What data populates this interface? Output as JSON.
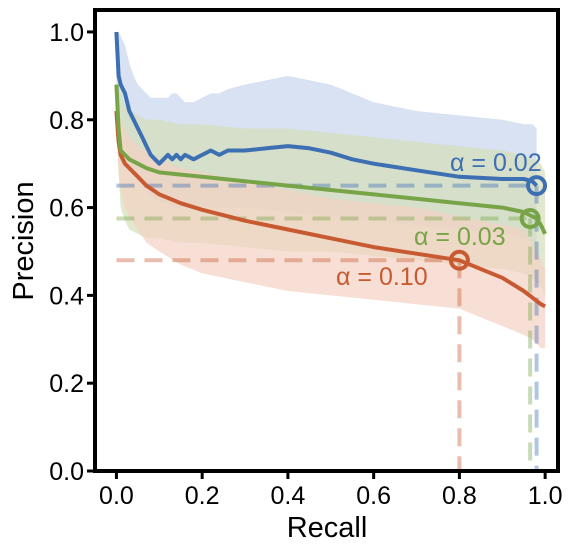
{
  "chart_data": {
    "type": "line",
    "title": "",
    "xlabel": "Recall",
    "ylabel": "Precision",
    "xlim": [
      -0.05,
      1.03
    ],
    "ylim": [
      0.0,
      1.05
    ],
    "xticks": [
      0.0,
      0.2,
      0.4,
      0.6,
      0.8,
      1.0
    ],
    "xtick_labels": [
      "0.0",
      "0.2",
      "0.4",
      "0.6",
      "0.8",
      "1.0"
    ],
    "yticks": [
      0.0,
      0.2,
      0.4,
      0.6,
      0.8,
      1.0
    ],
    "ytick_labels": [
      "0.0",
      "0.2",
      "0.4",
      "0.6",
      "0.8",
      "1.0"
    ],
    "grid": false,
    "legend": "none",
    "series": [
      {
        "key": "blue",
        "color": "#3d6fb3",
        "band_color": "#c7d6ec",
        "x": [
          0.0,
          0.005,
          0.01,
          0.02,
          0.03,
          0.04,
          0.05,
          0.06,
          0.07,
          0.08,
          0.09,
          0.1,
          0.11,
          0.12,
          0.13,
          0.14,
          0.15,
          0.16,
          0.18,
          0.2,
          0.22,
          0.24,
          0.26,
          0.3,
          0.35,
          0.4,
          0.45,
          0.5,
          0.55,
          0.6,
          0.7,
          0.8,
          0.9,
          0.95,
          0.97,
          0.98
        ],
        "y": [
          1.0,
          0.9,
          0.88,
          0.86,
          0.82,
          0.8,
          0.78,
          0.76,
          0.74,
          0.72,
          0.71,
          0.7,
          0.71,
          0.72,
          0.71,
          0.72,
          0.71,
          0.72,
          0.71,
          0.72,
          0.73,
          0.72,
          0.73,
          0.73,
          0.735,
          0.74,
          0.735,
          0.725,
          0.71,
          0.7,
          0.685,
          0.67,
          0.665,
          0.665,
          0.66,
          0.65
        ],
        "lower": [
          1.0,
          0.86,
          0.8,
          0.74,
          0.7,
          0.68,
          0.66,
          0.65,
          0.64,
          0.63,
          0.62,
          0.615,
          0.61,
          0.61,
          0.6,
          0.6,
          0.6,
          0.6,
          0.6,
          0.6,
          0.6,
          0.6,
          0.6,
          0.6,
          0.595,
          0.59,
          0.585,
          0.58,
          0.575,
          0.57,
          0.56,
          0.55,
          0.54,
          0.53,
          0.52,
          0.5
        ],
        "upper": [
          1.0,
          1.0,
          0.99,
          0.97,
          0.93,
          0.9,
          0.88,
          0.87,
          0.86,
          0.85,
          0.85,
          0.85,
          0.85,
          0.85,
          0.86,
          0.86,
          0.85,
          0.84,
          0.84,
          0.85,
          0.86,
          0.86,
          0.87,
          0.88,
          0.89,
          0.9,
          0.89,
          0.88,
          0.86,
          0.84,
          0.82,
          0.81,
          0.8,
          0.79,
          0.79,
          0.78
        ],
        "marker": {
          "x": 0.98,
          "y": 0.65
        },
        "annotation": "α = 0.02"
      },
      {
        "key": "green",
        "color": "#78a448",
        "band_color": "#d4deb9",
        "x": [
          0.0,
          0.005,
          0.01,
          0.02,
          0.03,
          0.05,
          0.07,
          0.1,
          0.15,
          0.2,
          0.3,
          0.4,
          0.5,
          0.6,
          0.7,
          0.8,
          0.9,
          0.95,
          0.97,
          0.98,
          0.99,
          1.0
        ],
        "y": [
          0.88,
          0.78,
          0.73,
          0.72,
          0.71,
          0.7,
          0.69,
          0.68,
          0.675,
          0.67,
          0.66,
          0.65,
          0.64,
          0.63,
          0.62,
          0.61,
          0.6,
          0.59,
          0.58,
          0.575,
          0.56,
          0.54
        ],
        "lower": [
          0.82,
          0.68,
          0.6,
          0.57,
          0.55,
          0.54,
          0.53,
          0.53,
          0.52,
          0.52,
          0.51,
          0.5,
          0.5,
          0.49,
          0.48,
          0.47,
          0.46,
          0.45,
          0.44,
          0.43,
          0.42,
          0.4
        ],
        "upper": [
          0.94,
          0.88,
          0.86,
          0.83,
          0.82,
          0.81,
          0.8,
          0.8,
          0.79,
          0.79,
          0.78,
          0.78,
          0.77,
          0.76,
          0.75,
          0.74,
          0.73,
          0.72,
          0.71,
          0.71,
          0.7,
          0.68
        ],
        "marker": {
          "x": 0.965,
          "y": 0.575
        },
        "annotation": "α = 0.03"
      },
      {
        "key": "orange",
        "color": "#c85a32",
        "band_color": "#f3d1c3",
        "x": [
          0.0,
          0.005,
          0.01,
          0.02,
          0.03,
          0.05,
          0.07,
          0.1,
          0.15,
          0.2,
          0.3,
          0.4,
          0.5,
          0.6,
          0.7,
          0.8,
          0.9,
          0.95,
          0.97,
          0.99,
          1.0
        ],
        "y": [
          0.82,
          0.75,
          0.72,
          0.7,
          0.69,
          0.67,
          0.65,
          0.63,
          0.61,
          0.595,
          0.57,
          0.55,
          0.53,
          0.51,
          0.495,
          0.48,
          0.44,
          0.41,
          0.395,
          0.38,
          0.375
        ],
        "lower": [
          0.78,
          0.68,
          0.64,
          0.6,
          0.58,
          0.55,
          0.52,
          0.5,
          0.47,
          0.45,
          0.43,
          0.41,
          0.4,
          0.39,
          0.38,
          0.37,
          0.33,
          0.31,
          0.3,
          0.28,
          0.28
        ],
        "upper": [
          0.86,
          0.82,
          0.8,
          0.78,
          0.76,
          0.74,
          0.73,
          0.71,
          0.69,
          0.68,
          0.66,
          0.64,
          0.62,
          0.61,
          0.6,
          0.58,
          0.56,
          0.55,
          0.52,
          0.48,
          0.46
        ],
        "marker": {
          "x": 0.8,
          "y": 0.48
        },
        "annotation": "α = 0.10"
      }
    ]
  }
}
